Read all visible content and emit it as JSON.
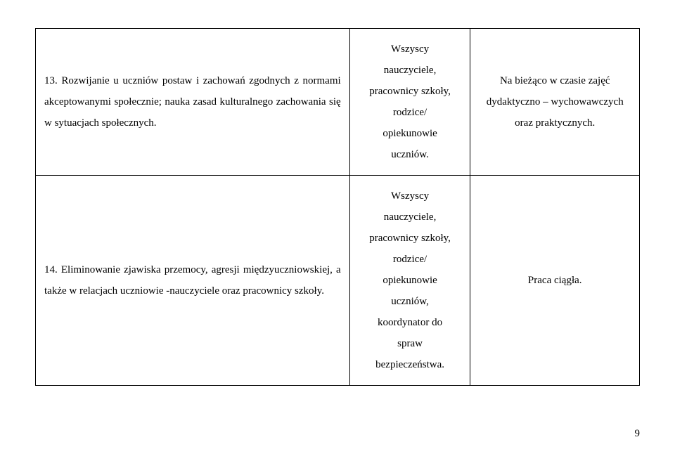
{
  "table": {
    "rows": [
      {
        "col1": "13. Rozwijanie u  uczniów postaw i zachowań zgodnych z normami akceptowanymi społecznie; nauka  zasad kulturalnego zachowania  się  w  sytuacjach społecznych.",
        "col2_lines": [
          "Wszyscy",
          "nauczyciele,",
          "pracownicy szkoły,",
          "rodzice/",
          "opiekunowie",
          "uczniów."
        ],
        "col3": "Na   bieżąco w czasie zajęć dydaktyczno – wychowawczych  oraz praktycznych."
      },
      {
        "col1": "14. Eliminowanie  zjawiska     przemocy,  agresji międzyuczniowskiej, a także w  relacjach uczniowie  -nauczyciele oraz  pracownicy  szkoły.",
        "col2_lines": [
          "Wszyscy",
          "nauczyciele,",
          "pracownicy szkoły,",
          "rodzice/",
          "opiekunowie",
          "uczniów,",
          "koordynator do",
          "spraw",
          "bezpieczeństwa."
        ],
        "col3": "Praca  ciągła."
      }
    ]
  },
  "page_number": "9"
}
